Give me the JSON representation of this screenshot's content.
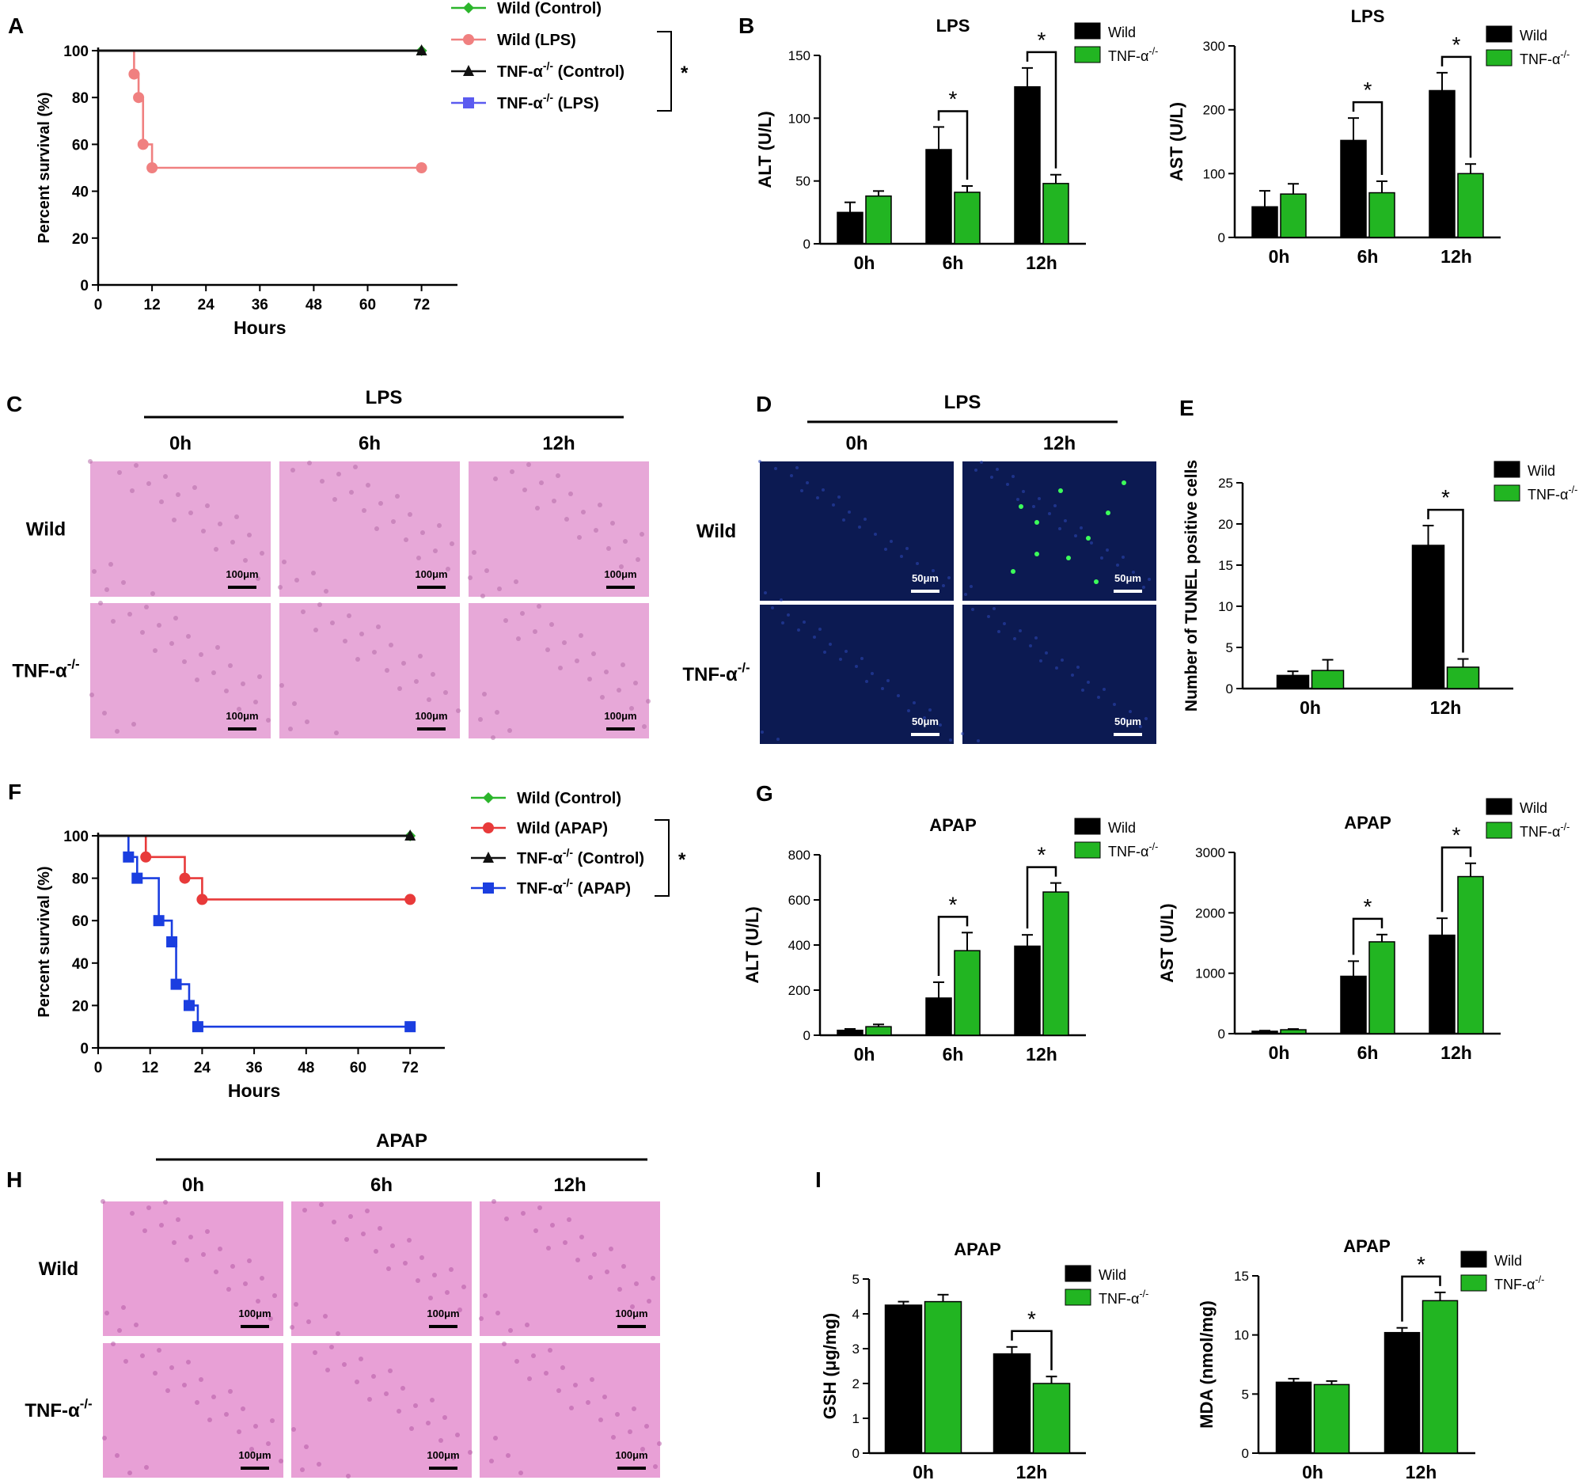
{
  "figure": {
    "panel_letters": [
      "A",
      "B",
      "C",
      "D",
      "E",
      "F",
      "G",
      "H",
      "I"
    ],
    "significance_mark": "*",
    "scale_bar_100": "100μm",
    "scale_bar_50": "50μm"
  },
  "micrographs": {
    "C": {
      "treatment": "LPS",
      "times": [
        "0h",
        "6h",
        "12h"
      ],
      "rows": [
        "Wild",
        "TNF-α-/-"
      ]
    },
    "D": {
      "treatment": "LPS",
      "times": [
        "0h",
        "12h"
      ],
      "rows": [
        "Wild",
        "TNF-α-/-"
      ],
      "stain": "TUNEL"
    },
    "H": {
      "treatment": "APAP",
      "times": [
        "0h",
        "6h",
        "12h"
      ],
      "rows": [
        "Wild",
        "TNF-α-/-"
      ]
    }
  },
  "chart_data": [
    {
      "panel": "A",
      "type": "line",
      "title": "",
      "xlabel": "Hours",
      "ylabel": "Percent survival (%)",
      "xlim": [
        0,
        80
      ],
      "ylim": [
        0,
        100
      ],
      "xticks": [
        0,
        12,
        24,
        36,
        48,
        60,
        72
      ],
      "yticks": [
        0,
        20,
        40,
        60,
        80,
        100
      ],
      "series": [
        {
          "name": "Wild (Control)",
          "color": "#2bb52b",
          "marker": "diamond",
          "x": [
            0,
            72
          ],
          "y": [
            100,
            100
          ],
          "points": [
            [
              72,
              100
            ]
          ]
        },
        {
          "name": "Wild (LPS)",
          "color": "#f08080",
          "marker": "circle",
          "x": [
            0,
            8,
            8,
            9,
            9,
            10,
            10,
            12,
            12,
            72
          ],
          "y": [
            100,
            100,
            90,
            90,
            80,
            80,
            60,
            60,
            50,
            50
          ],
          "points": [
            [
              8,
              90
            ],
            [
              9,
              80
            ],
            [
              10,
              60
            ],
            [
              12,
              50
            ],
            [
              72,
              50
            ]
          ]
        },
        {
          "name": "TNF-α-/- (Control)",
          "color": "#111111",
          "marker": "triangle",
          "x": [
            0,
            72
          ],
          "y": [
            100,
            100
          ],
          "points": [
            [
              72,
              100
            ]
          ]
        },
        {
          "name": "TNF-α-/- (LPS)",
          "color": "#5b5bf0",
          "marker": "square",
          "x": [
            0,
            72
          ],
          "y": [
            100,
            100
          ],
          "points": []
        }
      ],
      "legend_sig": "*"
    },
    {
      "panel": "B",
      "type": "bar",
      "title": "LPS",
      "ylabel": "ALT (U/L)",
      "categories": [
        "0h",
        "6h",
        "12h"
      ],
      "ylim": [
        0,
        150
      ],
      "yticks": [
        0,
        50,
        100,
        150
      ],
      "series": [
        {
          "name": "Wild",
          "color": "#000000",
          "values": [
            25,
            75,
            125
          ],
          "errors": [
            8,
            18,
            15
          ]
        },
        {
          "name": "TNF-α-/-",
          "color": "#22b522",
          "values": [
            38,
            41,
            48
          ],
          "errors": [
            4,
            5,
            7
          ]
        }
      ],
      "significance": [
        {
          "category": "6h",
          "label": "*"
        },
        {
          "category": "12h",
          "label": "*"
        }
      ]
    },
    {
      "panel": "B",
      "type": "bar",
      "title": "LPS",
      "ylabel": "AST (U/L)",
      "categories": [
        "0h",
        "6h",
        "12h"
      ],
      "ylim": [
        0,
        300
      ],
      "yticks": [
        0,
        100,
        200,
        300
      ],
      "series": [
        {
          "name": "Wild",
          "color": "#000000",
          "values": [
            48,
            152,
            230
          ],
          "errors": [
            25,
            35,
            28
          ]
        },
        {
          "name": "TNF-α-/-",
          "color": "#22b522",
          "values": [
            68,
            70,
            100
          ],
          "errors": [
            16,
            18,
            15
          ]
        }
      ],
      "significance": [
        {
          "category": "6h",
          "label": "*"
        },
        {
          "category": "12h",
          "label": "*"
        }
      ]
    },
    {
      "panel": "E",
      "type": "bar",
      "title": "",
      "ylabel": "Number of TUNEL positive cells",
      "categories": [
        "0h",
        "12h"
      ],
      "ylim": [
        0,
        25
      ],
      "yticks": [
        0,
        5,
        10,
        15,
        20,
        25
      ],
      "series": [
        {
          "name": "Wild",
          "color": "#000000",
          "values": [
            1.6,
            17.4
          ],
          "errors": [
            0.5,
            2.4
          ]
        },
        {
          "name": "TNF-α-/-",
          "color": "#22b522",
          "values": [
            2.2,
            2.6
          ],
          "errors": [
            1.3,
            1.0
          ]
        }
      ],
      "significance": [
        {
          "category": "12h",
          "label": "*"
        }
      ]
    },
    {
      "panel": "F",
      "type": "line",
      "title": "",
      "xlabel": "Hours",
      "ylabel": "Percent survival (%)",
      "xlim": [
        0,
        80
      ],
      "ylim": [
        0,
        100
      ],
      "xticks": [
        0,
        12,
        24,
        36,
        48,
        60,
        72
      ],
      "yticks": [
        0,
        20,
        40,
        60,
        80,
        100
      ],
      "series": [
        {
          "name": "Wild  (Control)",
          "color": "#2bb52b",
          "marker": "diamond",
          "x": [
            0,
            72
          ],
          "y": [
            100,
            100
          ],
          "points": [
            [
              72,
              100
            ]
          ]
        },
        {
          "name": "Wild  (APAP)",
          "color": "#e83a3a",
          "marker": "circle",
          "x": [
            0,
            11,
            11,
            20,
            20,
            24,
            24,
            72
          ],
          "y": [
            100,
            100,
            90,
            90,
            80,
            80,
            70,
            70
          ],
          "points": [
            [
              11,
              90
            ],
            [
              20,
              80
            ],
            [
              24,
              70
            ],
            [
              72,
              70
            ]
          ]
        },
        {
          "name": "TNF-α-/- (Control)",
          "color": "#111111",
          "marker": "triangle",
          "x": [
            0,
            72
          ],
          "y": [
            100,
            100
          ],
          "points": [
            [
              72,
              100
            ]
          ]
        },
        {
          "name": "TNF-α-/- (APAP)",
          "color": "#1a3ee0",
          "marker": "square",
          "x": [
            0,
            7,
            7,
            9,
            9,
            14,
            14,
            17,
            17,
            18,
            18,
            21,
            21,
            23,
            23,
            72
          ],
          "y": [
            100,
            100,
            90,
            90,
            80,
            80,
            60,
            60,
            50,
            50,
            30,
            30,
            20,
            20,
            10,
            10
          ],
          "points": [
            [
              7,
              90
            ],
            [
              9,
              80
            ],
            [
              14,
              60
            ],
            [
              17,
              50
            ],
            [
              18,
              30
            ],
            [
              21,
              20
            ],
            [
              23,
              10
            ],
            [
              72,
              10
            ]
          ]
        }
      ],
      "legend_sig": "*"
    },
    {
      "panel": "G",
      "type": "bar",
      "title": "APAP",
      "ylabel": "ALT (U/L)",
      "categories": [
        "0h",
        "6h",
        "12h"
      ],
      "ylim": [
        0,
        800
      ],
      "yticks": [
        0,
        200,
        400,
        600,
        800
      ],
      "series": [
        {
          "name": "Wild",
          "color": "#000000",
          "values": [
            22,
            165,
            395
          ],
          "errors": [
            6,
            70,
            50
          ]
        },
        {
          "name": "TNF-α-/-",
          "color": "#22b522",
          "values": [
            38,
            375,
            635
          ],
          "errors": [
            10,
            80,
            40
          ]
        }
      ],
      "significance": [
        {
          "category": "6h",
          "label": "*"
        },
        {
          "category": "12h",
          "label": "*"
        }
      ]
    },
    {
      "panel": "G",
      "type": "bar",
      "title": "APAP",
      "ylabel": "AST (U/L)",
      "categories": [
        "0h",
        "6h",
        "12h"
      ],
      "ylim": [
        0,
        3000
      ],
      "yticks": [
        0,
        1000,
        2000,
        3000
      ],
      "series": [
        {
          "name": "Wild",
          "color": "#000000",
          "values": [
            40,
            950,
            1630
          ],
          "errors": [
            10,
            250,
            280
          ]
        },
        {
          "name": "TNF-α-/-",
          "color": "#22b522",
          "values": [
            65,
            1520,
            2600
          ],
          "errors": [
            12,
            120,
            220
          ]
        }
      ],
      "significance": [
        {
          "category": "6h",
          "label": "*"
        },
        {
          "category": "12h",
          "label": "*"
        }
      ]
    },
    {
      "panel": "I",
      "type": "bar",
      "title": "APAP",
      "ylabel": "GSH (μg/mg)",
      "categories": [
        "0h",
        "12h"
      ],
      "ylim": [
        0,
        5
      ],
      "yticks": [
        0,
        1,
        2,
        3,
        4,
        5
      ],
      "series": [
        {
          "name": "Wild",
          "color": "#000000",
          "values": [
            4.25,
            2.85
          ],
          "errors": [
            0.1,
            0.2
          ]
        },
        {
          "name": "TNF-α-/-",
          "color": "#22b522",
          "values": [
            4.35,
            2.0
          ],
          "errors": [
            0.2,
            0.2
          ]
        }
      ],
      "significance": [
        {
          "category": "12h",
          "label": "*"
        }
      ]
    },
    {
      "panel": "I",
      "type": "bar",
      "title": "APAP",
      "ylabel": "MDA (nmol/mg)",
      "categories": [
        "0h",
        "12h"
      ],
      "ylim": [
        0,
        15
      ],
      "yticks": [
        0,
        5,
        10,
        15
      ],
      "series": [
        {
          "name": "Wild",
          "color": "#000000",
          "values": [
            6.0,
            10.2
          ],
          "errors": [
            0.3,
            0.4
          ]
        },
        {
          "name": "TNF-α-/-",
          "color": "#22b522",
          "values": [
            5.8,
            12.9
          ],
          "errors": [
            0.3,
            0.7
          ]
        }
      ],
      "significance": [
        {
          "category": "12h",
          "label": "*"
        }
      ]
    }
  ]
}
